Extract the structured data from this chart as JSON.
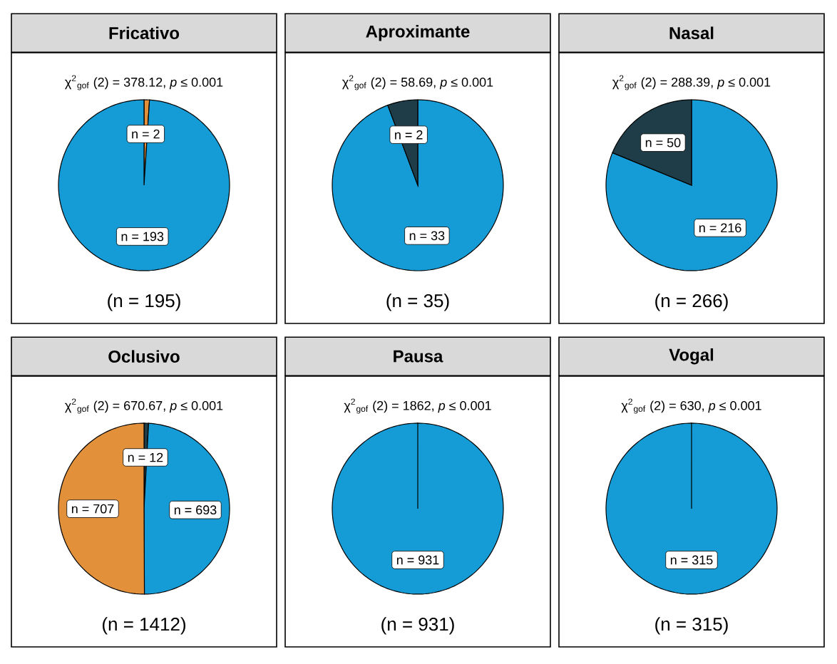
{
  "chart_data": [
    {
      "type": "pie",
      "title": "Fricativo",
      "subtitle": "χ$^{2}$$_{gof}$ (2) = 378.12,  *p* ≤ 0.001",
      "categories": [
        null,
        null
      ],
      "values": [
        2,
        193
      ],
      "colors": [
        "#e3903a",
        "#159bd5"
      ],
      "value_labels": [
        "n = 2",
        "n = 193"
      ],
      "annotations": [
        "(n = 195)"
      ]
    },
    {
      "type": "pie",
      "title": "Aproximante",
      "subtitle": "χ$^{2}$$_{gof}$ (2) = 58.69,  *p* ≤ 0.001",
      "categories": [
        null,
        null
      ],
      "values": [
        33,
        2
      ],
      "colors": [
        "#159bd5",
        "#1e3d48"
      ],
      "value_labels": [
        "n = 33",
        "n = 2"
      ],
      "annotations": [
        "(n = 35)"
      ]
    },
    {
      "type": "pie",
      "title": "Nasal",
      "subtitle": "χ$^{2}$$_{gof}$ (2) = 288.39,  *p* ≤ 0.001",
      "categories": [
        null,
        null
      ],
      "values": [
        216,
        50
      ],
      "colors": [
        "#159bd5",
        "#1e3d48"
      ],
      "value_labels": [
        "n = 216",
        "n = 50"
      ],
      "annotations": [
        "(n = 266)"
      ]
    },
    {
      "type": "pie",
      "title": "Oclusivo",
      "subtitle": "χ$^{2}$$_{gof}$ (2) = 670.67,  *p* ≤ 0.001",
      "categories": [
        null,
        null,
        null
      ],
      "values": [
        12,
        693,
        707
      ],
      "colors": [
        "#1e3d48",
        "#159bd5",
        "#e3903a"
      ],
      "value_labels": [
        "n = 12",
        "n = 693",
        "n = 707"
      ],
      "annotations": [
        "(n = 1412)"
      ]
    },
    {
      "type": "pie",
      "title": "Pausa",
      "subtitle": "χ$^{2}$$_{gof}$ (2) = 1862,  *p* ≤ 0.001",
      "categories": [
        null
      ],
      "values": [
        931
      ],
      "colors": [
        "#159bd5"
      ],
      "value_labels": [
        "n = 931"
      ],
      "annotations": [
        "(n = 931)"
      ]
    },
    {
      "type": "pie",
      "title": "Vogal",
      "subtitle": "χ$^{2}$$_{gof}$ (2) = 630,  *p* ≤ 0.001",
      "categories": [
        null
      ],
      "values": [
        315
      ],
      "colors": [
        "#159bd5"
      ],
      "value_labels": [
        "n = 315"
      ],
      "annotations": [
        "(n = 315)"
      ]
    }
  ]
}
